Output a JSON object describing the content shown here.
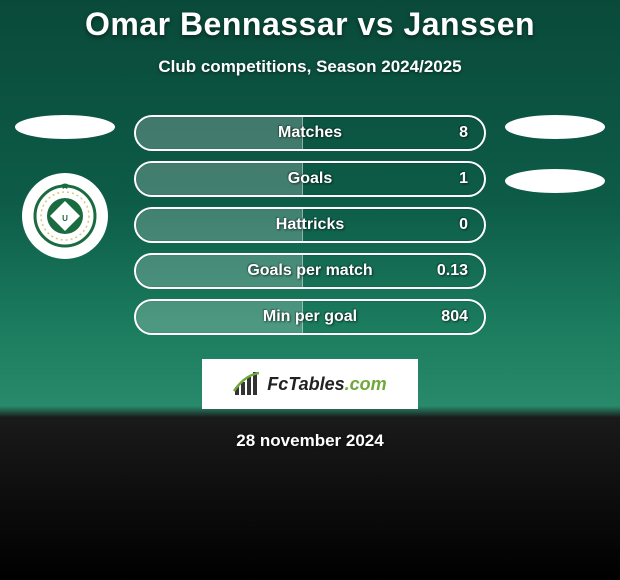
{
  "header": {
    "title": "Omar Bennassar vs Janssen",
    "subtitle": "Club competitions, Season 2024/2025"
  },
  "stats": [
    {
      "label": "Matches",
      "value": "8",
      "fill_pct": 48
    },
    {
      "label": "Goals",
      "value": "1",
      "fill_pct": 48
    },
    {
      "label": "Hattricks",
      "value": "0",
      "fill_pct": 48
    },
    {
      "label": "Goals per match",
      "value": "0.13",
      "fill_pct": 48
    },
    {
      "label": "Min per goal",
      "value": "804",
      "fill_pct": 48
    }
  ],
  "brand": {
    "text_prefix": "Fc",
    "text_rest": "Tables",
    "text_suffix": ".com"
  },
  "footer": {
    "date": "28 november 2024"
  },
  "crest": {
    "bg": "#ffffff",
    "inner": "#1a6b3f",
    "ring": "#d4c97a"
  }
}
